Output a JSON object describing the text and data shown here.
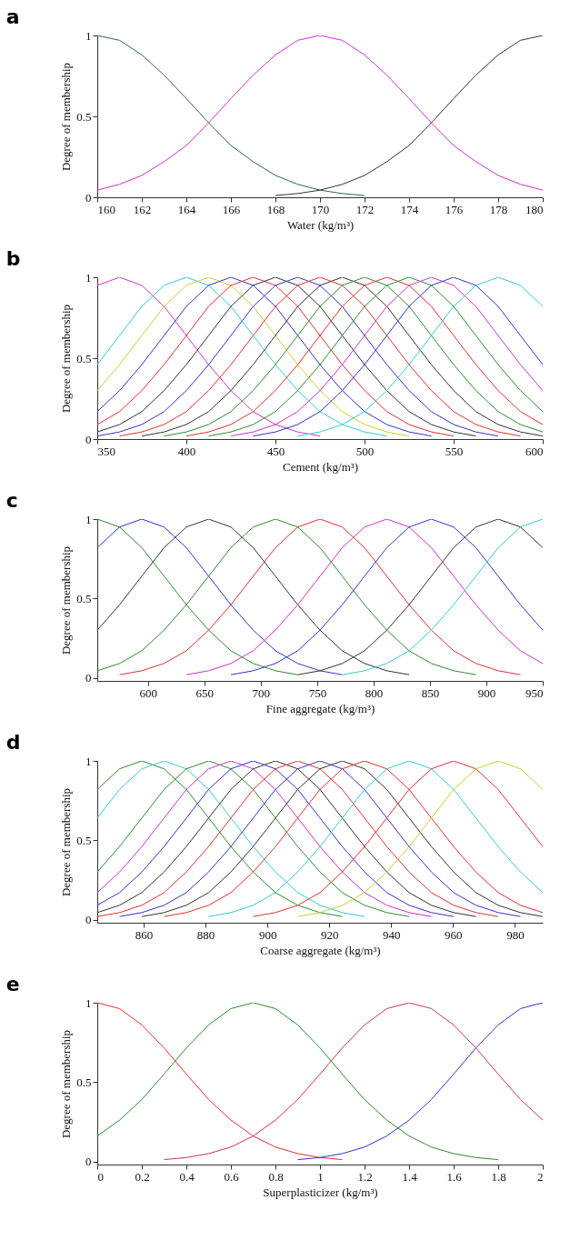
{
  "chart_data": [
    {
      "type": "line",
      "title": "a",
      "xlabel": "Water (kg/m³)",
      "ylabel": "Degree of membership",
      "xlim": [
        160,
        180
      ],
      "ylim": [
        0,
        1
      ],
      "xticks": [
        160,
        162,
        164,
        166,
        168,
        170,
        172,
        174,
        176,
        178,
        180
      ],
      "yticks": [
        0,
        0.5,
        1
      ],
      "grid": false,
      "legend": false,
      "x": [
        160,
        161,
        162,
        163,
        164,
        165,
        166,
        167,
        168,
        169,
        170,
        171,
        172,
        173,
        174,
        175,
        176,
        177,
        178,
        179,
        180
      ],
      "series": [
        {
          "color": "#2e6b3a",
          "values": [
            1,
            0.97,
            0.88,
            0.755,
            0.61,
            0.46,
            0.32,
            0.22,
            0.135,
            0.08,
            0.044,
            0.023,
            0.011,
            null,
            null,
            null,
            null,
            null,
            null,
            null,
            null
          ]
        },
        {
          "color": "#cc33cc",
          "values": [
            0.044,
            0.08,
            0.135,
            0.22,
            0.32,
            0.46,
            0.61,
            0.755,
            0.88,
            0.97,
            1,
            0.97,
            0.88,
            0.755,
            0.61,
            0.46,
            0.32,
            0.22,
            0.135,
            0.08,
            0.044
          ]
        },
        {
          "color": "#333333",
          "values": [
            null,
            null,
            null,
            null,
            null,
            null,
            null,
            null,
            0.011,
            0.023,
            0.044,
            0.08,
            0.135,
            0.22,
            0.32,
            0.46,
            0.61,
            0.755,
            0.88,
            0.97,
            1
          ]
        }
      ]
    },
    {
      "type": "line",
      "title": "b",
      "xlabel": "Cement (kg/m³)",
      "ylabel": "Degree of membership",
      "xlim": [
        350,
        600
      ],
      "ylim": [
        0,
        1
      ],
      "xticks": [
        350,
        400,
        450,
        500,
        550,
        600
      ],
      "yticks": [
        0,
        0.5,
        1
      ],
      "grid": false,
      "legend": false,
      "x": [
        350,
        362.5,
        375,
        387.5,
        400,
        412.5,
        425,
        437.5,
        450,
        462.5,
        475,
        487.5,
        500,
        512.5,
        525,
        537.5,
        550,
        562.5,
        575,
        587.5,
        600
      ],
      "series": [
        {
          "color": "#cc33cc",
          "values": [
            0.95,
            1,
            0.95,
            0.82,
            0.64,
            0.46,
            0.3,
            0.17,
            0.09,
            0.044,
            0.019,
            null,
            null,
            null,
            null,
            null,
            null,
            null,
            null,
            null,
            null
          ]
        },
        {
          "color": "#33cccc",
          "values": [
            0.46,
            0.64,
            0.82,
            0.95,
            1,
            0.95,
            0.82,
            0.64,
            0.46,
            0.3,
            0.17,
            0.09,
            0.044,
            0.019,
            null,
            null,
            null,
            null,
            null,
            null,
            null
          ]
        },
        {
          "color": "#cccc33",
          "values": [
            0.3,
            0.46,
            0.64,
            0.82,
            0.95,
            1,
            0.95,
            0.82,
            0.64,
            0.46,
            0.3,
            0.17,
            0.09,
            0.044,
            0.019,
            null,
            null,
            null,
            null,
            null,
            null
          ]
        },
        {
          "color": "#3333cc",
          "values": [
            0.17,
            0.3,
            0.46,
            0.64,
            0.82,
            0.95,
            1,
            0.95,
            0.82,
            0.64,
            0.46,
            0.3,
            0.17,
            0.09,
            0.044,
            0.019,
            null,
            null,
            null,
            null,
            null
          ]
        },
        {
          "color": "#e03030",
          "values": [
            0.09,
            0.17,
            0.3,
            0.46,
            0.64,
            0.82,
            0.95,
            1,
            0.95,
            0.82,
            0.64,
            0.46,
            0.3,
            0.17,
            0.09,
            0.044,
            0.019,
            null,
            null,
            null,
            null
          ]
        },
        {
          "color": "#333333",
          "values": [
            0.044,
            0.09,
            0.17,
            0.3,
            0.46,
            0.64,
            0.82,
            0.95,
            1,
            0.95,
            0.82,
            0.64,
            0.46,
            0.3,
            0.17,
            0.09,
            0.044,
            0.019,
            null,
            null,
            null
          ]
        },
        {
          "color": "#3333cc",
          "values": [
            0.019,
            0.044,
            0.09,
            0.17,
            0.3,
            0.46,
            0.64,
            0.82,
            0.95,
            1,
            0.95,
            0.82,
            0.64,
            0.46,
            0.3,
            0.17,
            0.09,
            0.044,
            0.019,
            null,
            null
          ]
        },
        {
          "color": "#e03030",
          "values": [
            null,
            0.019,
            0.044,
            0.09,
            0.17,
            0.3,
            0.46,
            0.64,
            0.82,
            0.95,
            1,
            0.95,
            0.82,
            0.64,
            0.46,
            0.3,
            0.17,
            0.09,
            0.044,
            0.019,
            null
          ]
        },
        {
          "color": "#333333",
          "values": [
            null,
            null,
            0.019,
            0.044,
            0.09,
            0.17,
            0.3,
            0.46,
            0.64,
            0.82,
            0.95,
            1,
            0.95,
            0.82,
            0.64,
            0.46,
            0.3,
            0.17,
            0.09,
            0.044,
            0.019
          ]
        },
        {
          "color": "#2e8b2e",
          "values": [
            null,
            null,
            null,
            0.019,
            0.044,
            0.09,
            0.17,
            0.3,
            0.46,
            0.64,
            0.82,
            0.95,
            1,
            0.95,
            0.82,
            0.64,
            0.46,
            0.3,
            0.17,
            0.09,
            0.044
          ]
        },
        {
          "color": "#e03030",
          "values": [
            null,
            null,
            null,
            null,
            0.019,
            0.044,
            0.09,
            0.17,
            0.3,
            0.46,
            0.64,
            0.82,
            0.95,
            1,
            0.95,
            0.82,
            0.64,
            0.46,
            0.3,
            0.17,
            0.09
          ]
        },
        {
          "color": "#2e8b2e",
          "values": [
            null,
            null,
            null,
            null,
            null,
            0.019,
            0.044,
            0.09,
            0.17,
            0.3,
            0.46,
            0.64,
            0.82,
            0.95,
            1,
            0.95,
            0.82,
            0.64,
            0.46,
            0.3,
            0.17
          ]
        },
        {
          "color": "#cc33cc",
          "values": [
            null,
            null,
            null,
            null,
            null,
            null,
            0.019,
            0.044,
            0.09,
            0.17,
            0.3,
            0.46,
            0.64,
            0.82,
            0.95,
            1,
            0.95,
            0.82,
            0.64,
            0.46,
            0.3
          ]
        },
        {
          "color": "#3333cc",
          "values": [
            null,
            null,
            null,
            null,
            null,
            null,
            null,
            0.019,
            0.044,
            0.09,
            0.17,
            0.3,
            0.46,
            0.64,
            0.82,
            0.95,
            1,
            0.95,
            0.82,
            0.64,
            0.46
          ]
        },
        {
          "color": "#33cccc",
          "values": [
            null,
            null,
            null,
            null,
            null,
            null,
            null,
            null,
            null,
            0.019,
            0.044,
            0.09,
            0.17,
            0.3,
            0.46,
            0.64,
            0.82,
            0.95,
            1,
            0.95,
            0.82
          ]
        }
      ]
    },
    {
      "type": "line",
      "title": "c",
      "xlabel": "Fine aggregate (kg/m³)",
      "ylabel": "Degree of membership",
      "xlim": [
        555,
        950
      ],
      "ylim": [
        -0.02,
        1
      ],
      "xticks": [
        600,
        650,
        700,
        750,
        800,
        850,
        900,
        950
      ],
      "yticks": [
        0,
        0.5,
        1
      ],
      "grid": false,
      "legend": false,
      "x": [
        555,
        574.75,
        594.5,
        614.25,
        634,
        653.75,
        673.5,
        693.25,
        713,
        732.75,
        752.5,
        772.25,
        792,
        811.75,
        831.5,
        851.25,
        871,
        890.75,
        910.5,
        930.25,
        950
      ],
      "series": [
        {
          "color": "#2e8b2e",
          "values": [
            1,
            0.95,
            0.82,
            0.64,
            0.46,
            0.3,
            0.17,
            0.09,
            0.044,
            0.019,
            null,
            null,
            null,
            null,
            null,
            null,
            null,
            null,
            null,
            null,
            null
          ]
        },
        {
          "color": "#3333cc",
          "values": [
            0.82,
            0.95,
            1,
            0.95,
            0.82,
            0.64,
            0.46,
            0.3,
            0.17,
            0.09,
            0.044,
            0.019,
            null,
            null,
            null,
            null,
            null,
            null,
            null,
            null,
            null
          ]
        },
        {
          "color": "#333333",
          "values": [
            0.3,
            0.46,
            0.64,
            0.82,
            0.95,
            1,
            0.95,
            0.82,
            0.64,
            0.46,
            0.3,
            0.17,
            0.09,
            0.044,
            0.019,
            null,
            null,
            null,
            null,
            null,
            null
          ]
        },
        {
          "color": "#2e8b2e",
          "values": [
            0.044,
            0.09,
            0.17,
            0.3,
            0.46,
            0.64,
            0.82,
            0.95,
            1,
            0.95,
            0.82,
            0.64,
            0.46,
            0.3,
            0.17,
            0.09,
            0.044,
            0.019,
            null,
            null,
            null
          ]
        },
        {
          "color": "#e03030",
          "values": [
            null,
            0.019,
            0.044,
            0.09,
            0.17,
            0.3,
            0.46,
            0.64,
            0.82,
            0.95,
            1,
            0.95,
            0.82,
            0.64,
            0.46,
            0.3,
            0.17,
            0.09,
            0.044,
            0.019,
            null
          ]
        },
        {
          "color": "#cc33cc",
          "values": [
            null,
            null,
            null,
            null,
            0.019,
            0.044,
            0.09,
            0.17,
            0.3,
            0.46,
            0.64,
            0.82,
            0.95,
            1,
            0.95,
            0.82,
            0.64,
            0.46,
            0.3,
            0.17,
            0.09
          ]
        },
        {
          "color": "#3333cc",
          "values": [
            null,
            null,
            null,
            null,
            null,
            null,
            0.019,
            0.044,
            0.09,
            0.17,
            0.3,
            0.46,
            0.64,
            0.82,
            0.95,
            1,
            0.95,
            0.82,
            0.64,
            0.46,
            0.3
          ]
        },
        {
          "color": "#333333",
          "values": [
            null,
            null,
            null,
            null,
            null,
            null,
            null,
            null,
            null,
            0.019,
            0.044,
            0.09,
            0.17,
            0.3,
            0.46,
            0.64,
            0.82,
            0.95,
            1,
            0.95,
            0.82
          ]
        },
        {
          "color": "#33cccc",
          "values": [
            null,
            null,
            null,
            null,
            null,
            null,
            null,
            null,
            null,
            null,
            null,
            0.019,
            0.044,
            0.09,
            0.17,
            0.3,
            0.46,
            0.64,
            0.82,
            0.95,
            1
          ]
        }
      ]
    },
    {
      "type": "line",
      "title": "d",
      "xlabel": "Coarse aggregate (kg/m³)",
      "ylabel": "Degree of membership",
      "xlim": [
        845,
        989
      ],
      "ylim": [
        -0.02,
        1
      ],
      "xticks": [
        860,
        880,
        900,
        920,
        940,
        960,
        980
      ],
      "yticks": [
        0,
        0.5,
        1
      ],
      "grid": false,
      "legend": false,
      "x": [
        845,
        852.2,
        859.4,
        866.6,
        873.8,
        881,
        888.2,
        895.4,
        902.6,
        909.8,
        917,
        924.2,
        931.4,
        938.6,
        945.8,
        953,
        960.2,
        967.4,
        974.6,
        981.8,
        989
      ],
      "series": [
        {
          "color": "#2e8b2e",
          "values": [
            0.82,
            0.95,
            1,
            0.95,
            0.82,
            0.64,
            0.46,
            0.3,
            0.17,
            0.09,
            0.044,
            0.019,
            null,
            null,
            null,
            null,
            null,
            null,
            null,
            null,
            null
          ]
        },
        {
          "color": "#33cccc",
          "values": [
            0.64,
            0.82,
            0.95,
            1,
            0.95,
            0.82,
            0.64,
            0.46,
            0.3,
            0.17,
            0.09,
            0.044,
            0.019,
            null,
            null,
            null,
            null,
            null,
            null,
            null,
            null
          ]
        },
        {
          "color": "#2e8b2e",
          "values": [
            0.3,
            0.46,
            0.64,
            0.82,
            0.95,
            1,
            0.95,
            0.82,
            0.64,
            0.46,
            0.3,
            0.17,
            0.09,
            0.044,
            0.019,
            null,
            null,
            null,
            null,
            null,
            null
          ]
        },
        {
          "color": "#cc33cc",
          "values": [
            0.17,
            0.3,
            0.46,
            0.64,
            0.82,
            0.95,
            1,
            0.95,
            0.82,
            0.64,
            0.46,
            0.3,
            0.17,
            0.09,
            0.044,
            0.019,
            null,
            null,
            null,
            null,
            null
          ]
        },
        {
          "color": "#3333cc",
          "values": [
            0.09,
            0.17,
            0.3,
            0.46,
            0.64,
            0.82,
            0.95,
            1,
            0.95,
            0.82,
            0.64,
            0.46,
            0.3,
            0.17,
            0.09,
            0.044,
            0.019,
            null,
            null,
            null,
            null
          ]
        },
        {
          "color": "#333333",
          "values": [
            0.044,
            0.09,
            0.17,
            0.3,
            0.46,
            0.64,
            0.82,
            0.95,
            1,
            0.95,
            0.82,
            0.64,
            0.46,
            0.3,
            0.17,
            0.09,
            0.044,
            0.019,
            null,
            null,
            null
          ]
        },
        {
          "color": "#e03030",
          "values": [
            0.019,
            0.044,
            0.09,
            0.17,
            0.3,
            0.46,
            0.64,
            0.82,
            0.95,
            1,
            0.95,
            0.82,
            0.64,
            0.46,
            0.3,
            0.17,
            0.09,
            0.044,
            0.019,
            null,
            null
          ]
        },
        {
          "color": "#3333cc",
          "values": [
            null,
            0.019,
            0.044,
            0.09,
            0.17,
            0.3,
            0.46,
            0.64,
            0.82,
            0.95,
            1,
            0.95,
            0.82,
            0.64,
            0.46,
            0.3,
            0.17,
            0.09,
            0.044,
            0.019,
            null
          ]
        },
        {
          "color": "#333333",
          "values": [
            null,
            null,
            0.019,
            0.044,
            0.09,
            0.17,
            0.3,
            0.46,
            0.64,
            0.82,
            0.95,
            1,
            0.95,
            0.82,
            0.64,
            0.46,
            0.3,
            0.17,
            0.09,
            0.044,
            0.019
          ]
        },
        {
          "color": "#e03030",
          "values": [
            null,
            null,
            null,
            0.019,
            0.044,
            0.09,
            0.17,
            0.3,
            0.46,
            0.64,
            0.82,
            0.95,
            1,
            0.95,
            0.82,
            0.64,
            0.46,
            0.3,
            0.17,
            0.09,
            0.044
          ]
        },
        {
          "color": "#33cccc",
          "values": [
            null,
            null,
            null,
            null,
            null,
            0.019,
            0.044,
            0.09,
            0.17,
            0.3,
            0.46,
            0.64,
            0.82,
            0.95,
            1,
            0.95,
            0.82,
            0.64,
            0.46,
            0.3,
            0.17
          ]
        },
        {
          "color": "#e03030",
          "values": [
            null,
            null,
            null,
            null,
            null,
            null,
            null,
            0.019,
            0.044,
            0.09,
            0.17,
            0.3,
            0.46,
            0.64,
            0.82,
            0.95,
            1,
            0.95,
            0.82,
            0.64,
            0.46
          ]
        },
        {
          "color": "#cccc33",
          "values": [
            null,
            null,
            null,
            null,
            null,
            null,
            null,
            null,
            null,
            0.019,
            0.044,
            0.09,
            0.17,
            0.3,
            0.46,
            0.64,
            0.82,
            0.95,
            1,
            0.95,
            0.82
          ]
        }
      ]
    },
    {
      "type": "line",
      "title": "e",
      "xlabel": "Superplasticizer (kg/m³)",
      "ylabel": "Degree of membership",
      "xlim": [
        0,
        2
      ],
      "ylim": [
        -0.02,
        1
      ],
      "xticks": [
        0,
        0.2,
        0.4,
        0.6,
        0.8,
        1,
        1.2,
        1.4,
        1.6,
        1.8,
        2
      ],
      "yticks": [
        0,
        0.5,
        1
      ],
      "grid": false,
      "legend": false,
      "x": [
        0,
        0.1,
        0.2,
        0.3,
        0.4,
        0.5,
        0.6,
        0.7,
        0.8,
        0.9,
        1,
        1.1,
        1.2,
        1.3,
        1.4,
        1.5,
        1.6,
        1.7,
        1.8,
        1.9,
        2
      ],
      "series": [
        {
          "color": "#e03030",
          "values": [
            1,
            0.963,
            0.86,
            0.715,
            0.55,
            0.39,
            0.26,
            0.16,
            0.09,
            0.049,
            0.024,
            0.011,
            null,
            null,
            null,
            null,
            null,
            null,
            null,
            null,
            null
          ]
        },
        {
          "color": "#2e8b2e",
          "values": [
            0.16,
            0.26,
            0.39,
            0.55,
            0.715,
            0.86,
            0.963,
            1,
            0.963,
            0.86,
            0.715,
            0.55,
            0.39,
            0.26,
            0.16,
            0.09,
            0.049,
            0.024,
            0.011,
            null,
            null
          ]
        },
        {
          "color": "#cc3355",
          "values": [
            null,
            null,
            null,
            0.011,
            0.024,
            0.049,
            0.09,
            0.16,
            0.26,
            0.39,
            0.55,
            0.715,
            0.86,
            0.963,
            1,
            0.963,
            0.86,
            0.715,
            0.55,
            0.39,
            0.26
          ]
        },
        {
          "color": "#3333cc",
          "values": [
            null,
            null,
            null,
            null,
            null,
            null,
            null,
            null,
            null,
            0.011,
            0.024,
            0.049,
            0.09,
            0.16,
            0.26,
            0.39,
            0.55,
            0.715,
            0.86,
            0.963,
            1
          ]
        }
      ]
    }
  ]
}
